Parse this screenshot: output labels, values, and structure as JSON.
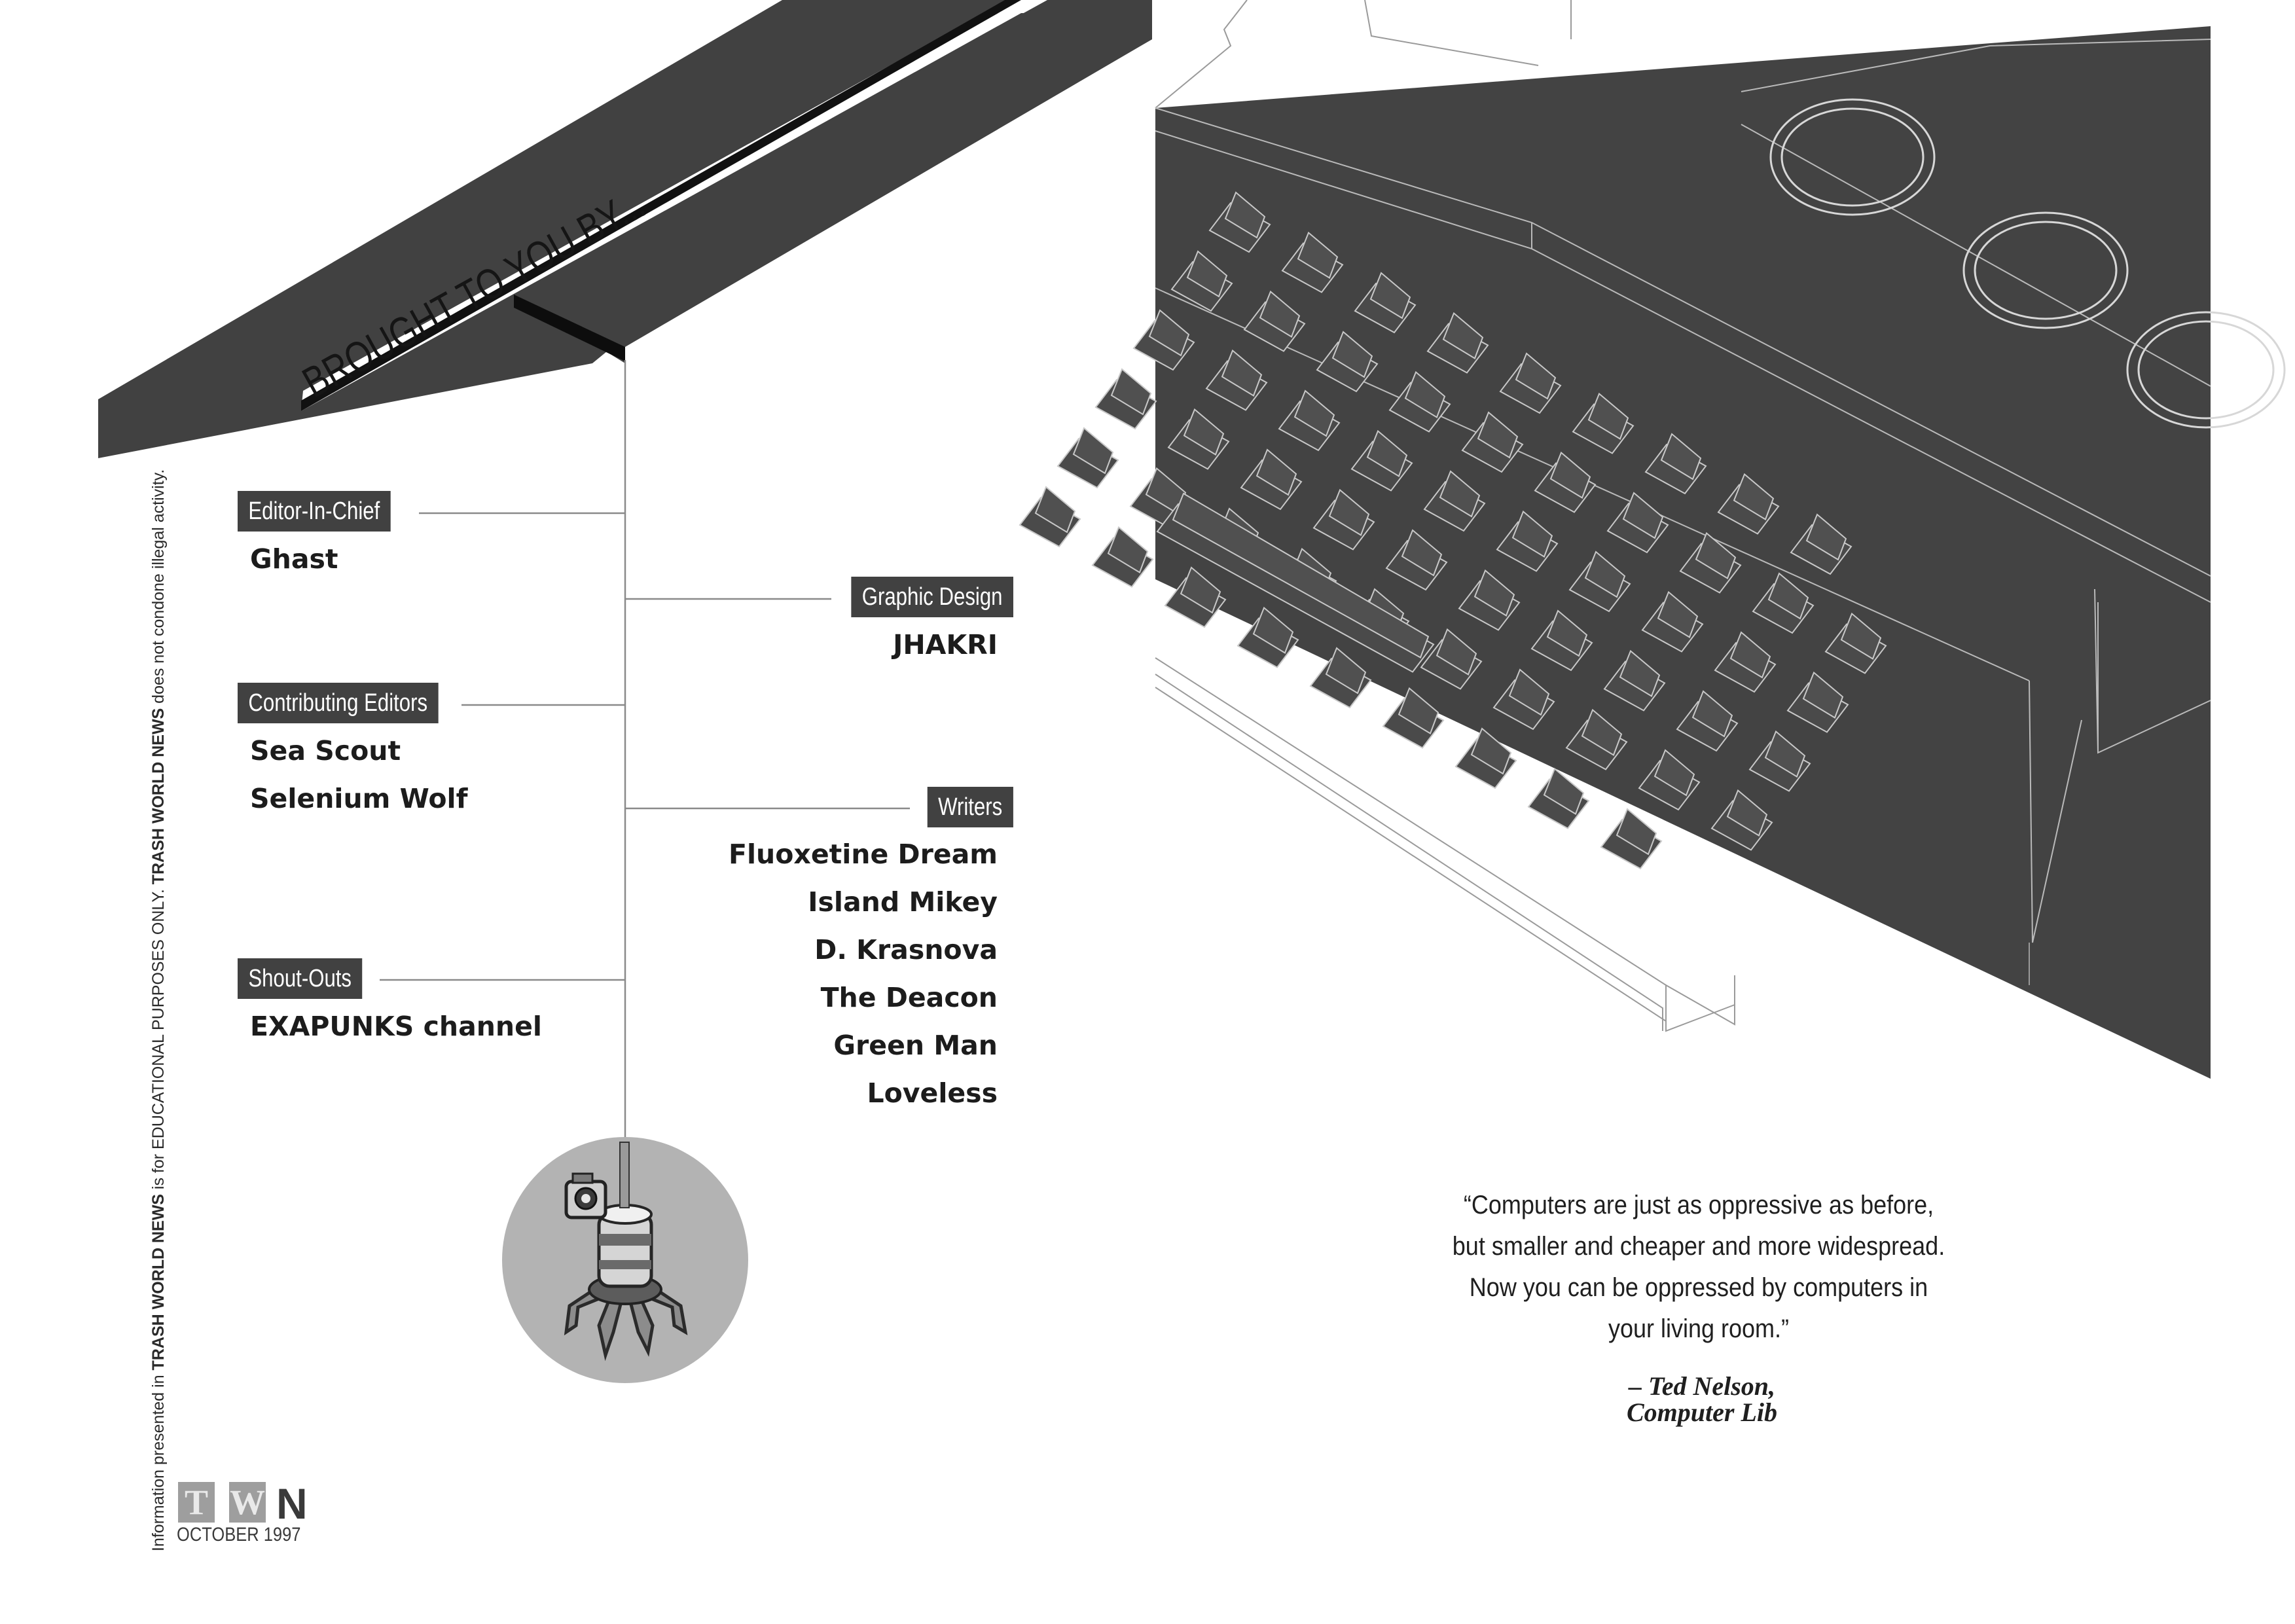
{
  "banner": {
    "heading": "BROUGHT TO YOU BY..."
  },
  "credits": {
    "editor_in_chief": {
      "label": "Editor-In-Chief",
      "names": [
        "Ghast"
      ]
    },
    "contributing_editors": {
      "label": "Contributing Editors",
      "names": [
        "Sea Scout",
        "Selenium Wolf"
      ]
    },
    "shout_outs": {
      "label": "Shout-Outs",
      "names": [
        "EXAPUNKS channel"
      ]
    },
    "graphic_design": {
      "label": "Graphic Design",
      "names": [
        "JHAKRI"
      ]
    },
    "writers": {
      "label": "Writers",
      "names": [
        "Fluoxetine Dream",
        "Island Mikey",
        "D. Krasnova",
        "The Deacon",
        "Green Man",
        "Loveless"
      ]
    }
  },
  "disclaimer": {
    "part1": "Information presented in ",
    "publication": "TRASH WORLD NEWS",
    "part2": " is for EDUCATIONAL PURPOSES ONLY.  ",
    "publication2": "TRASH WORLD NEWS",
    "part3": " does not condone illegal activity."
  },
  "logo": {
    "letter_t": "T",
    "letter_w": "W",
    "letter_n": "N",
    "issue": "OCTOBER 1997"
  },
  "quote": {
    "lines": [
      "“Computers are just as oppressive as before,",
      "but smaller and cheaper and more widespread.",
      "Now you can be oppressed by computers in",
      "your living room.”"
    ],
    "author": "– Ted Nelson,",
    "source": "Computer Lib"
  },
  "illustrations": {
    "robot": "exa-robot-icon",
    "keyboard": "computer-keyboard-illustration"
  },
  "colors": {
    "dark": "#414141",
    "ink": "#1c1c1c",
    "light_gray": "#b3b3b3",
    "line": "#8a8a8a"
  }
}
